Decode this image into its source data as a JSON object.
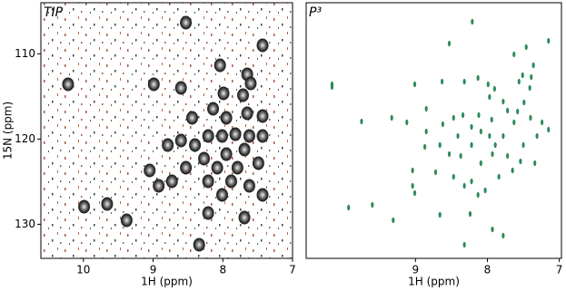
{
  "chart_data": [
    {
      "type": "scatter",
      "title": "TIP",
      "xlabel": "1H (ppm)",
      "ylabel": "15N (ppm)",
      "xlim": [
        10.61,
        7
      ],
      "ylim": [
        104,
        134
      ],
      "xticks": [
        10,
        9,
        8,
        7
      ],
      "yticks": [
        110,
        120,
        130
      ],
      "color": "#262626",
      "x": [
        8.53,
        7.43,
        7.65,
        8.04,
        7.6,
        8.99,
        8.6,
        7.99,
        7.71,
        8.44,
        8.14,
        7.95,
        7.65,
        7.43,
        8.21,
        8.01,
        7.82,
        7.62,
        7.43,
        8.6,
        8.4,
        8.79,
        7.69,
        7.95,
        8.27,
        8.08,
        7.79,
        7.49,
        8.53,
        9.05,
        8.73,
        8.21,
        7.88,
        7.62,
        8.92,
        8.01,
        7.43,
        8.21,
        7.69,
        9.38,
        9.99,
        9.66,
        10.22,
        8.34
      ],
      "y": [
        106.34,
        109.0,
        112.4,
        111.34,
        113.47,
        113.57,
        114.0,
        114.64,
        114.85,
        117.51,
        116.45,
        117.51,
        116.98,
        117.3,
        119.64,
        119.64,
        119.43,
        119.64,
        119.64,
        120.17,
        120.7,
        120.7,
        121.23,
        121.77,
        122.3,
        123.36,
        123.36,
        122.83,
        123.36,
        123.68,
        124.96,
        124.96,
        124.96,
        125.49,
        125.49,
        126.55,
        126.55,
        128.68,
        129.21,
        129.53,
        127.94,
        127.62,
        113.57,
        132.4
      ]
    },
    {
      "type": "scatter",
      "title": "P³",
      "xlabel": "1H (ppm)",
      "xlim": [
        10.52,
        6.97
      ],
      "ylim": [
        104,
        134
      ],
      "xticks": [
        9,
        8,
        7
      ],
      "color": "#2e8b57",
      "x": [
        7.15,
        7.46,
        7.63,
        8.21,
        8.53,
        7.36,
        7.39,
        7.51,
        7.41,
        7.56,
        7.9,
        7.99,
        8.13,
        8.32,
        8.63,
        9.01,
        9.33,
        9.75,
        10.16,
        10.16,
        7.97,
        7.78,
        7.72,
        7.49,
        7.58,
        8.12,
        8.34,
        7.94,
        7.63,
        7.4,
        7.24,
        7.15,
        7.31,
        7.5,
        7.54,
        7.72,
        7.89,
        7.97,
        8.09,
        8.22,
        8.47,
        8.62,
        8.85,
        8.66,
        8.53,
        8.37,
        8.22,
        8.09,
        8.22,
        8.03,
        7.84,
        7.65,
        7.34,
        8.87,
        9.04,
        8.72,
        8.47,
        8.32,
        8.13,
        9.04,
        9.01,
        8.66,
        8.24,
        7.93,
        7.78,
        8.32,
        9.31,
        9.6,
        9.93,
        8.85,
        9.12,
        8.41,
        7.93,
        7.78
      ],
      "y": [
        108.47,
        109.21,
        110.06,
        106.23,
        108.79,
        111.34,
        112.72,
        112.51,
        114.0,
        113.26,
        114.11,
        113.57,
        112.83,
        113.26,
        113.26,
        113.57,
        117.51,
        117.94,
        113.57,
        113.89,
        115.06,
        115.6,
        116.66,
        115.7,
        116.77,
        117.19,
        117.19,
        117.72,
        118.04,
        117.51,
        118.04,
        118.89,
        119.64,
        120.7,
        122.62,
        121.98,
        120.7,
        119.64,
        119.11,
        118.57,
        117.51,
        118.26,
        119.11,
        120.7,
        121.77,
        121.98,
        120.7,
        122.83,
        124.96,
        126.02,
        124.43,
        123.68,
        122.83,
        120.91,
        123.68,
        123.89,
        124.43,
        125.49,
        126.55,
        125.49,
        126.34,
        128.89,
        128.79,
        130.6,
        131.34,
        132.4,
        129.53,
        127.72,
        128.04,
        116.45,
        118.04,
        119.64,
        121.77,
        119.64
      ]
    }
  ]
}
